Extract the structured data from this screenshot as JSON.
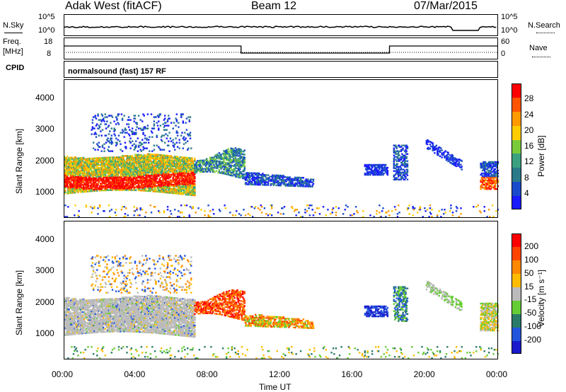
{
  "header": {
    "station": "Adak West (fitACF)",
    "beam": "Beam 12",
    "date": "07/Mar/2015"
  },
  "top_panels": {
    "nsky_label": "N.Sky",
    "nsearch_label": "N.Search",
    "nsky_ticks": [
      "10^5",
      "10^0"
    ],
    "nsearch_ticks": [
      "10^5",
      "10^0"
    ],
    "freq_label_1": "Freq.",
    "freq_label_2": "[MHz]",
    "freq_ticks": [
      "18",
      "8"
    ],
    "nave_label": "Nave",
    "nave_ticks": [
      "60",
      "0"
    ],
    "cpid_label": "CPID",
    "cpid_text": "normalsound (fast) 157 RF"
  },
  "chart_data": [
    {
      "type": "heatmap",
      "name": "power",
      "ylabel": "Slant Range [km]",
      "xlabel": "",
      "yticks": [
        "1000",
        "2000",
        "3000",
        "4000"
      ],
      "ylim": [
        200,
        4600
      ],
      "xlim": [
        0,
        24
      ],
      "colorbar": {
        "label": "Power [dB]",
        "ticks": [
          "4",
          "8",
          "12",
          "16",
          "20",
          "24",
          "28"
        ],
        "colors": [
          "#1a1aff",
          "#1a4acc",
          "#2a7a8a",
          "#3aa080",
          "#7acb3a",
          "#ffcc00",
          "#ff9900",
          "#ff5500",
          "#ff0000"
        ]
      }
    },
    {
      "type": "heatmap",
      "name": "velocity",
      "ylabel": "Slant Range [km]",
      "xlabel": "Time UT",
      "xticks": [
        "00:00",
        "04:00",
        "08:00",
        "12:00",
        "16:00",
        "20:00",
        "00:00"
      ],
      "yticks": [
        "1000",
        "2000",
        "3000",
        "4000"
      ],
      "ylim": [
        200,
        4600
      ],
      "xlim": [
        0,
        24
      ],
      "colorbar": {
        "label": "Velocity [m s⁻¹]",
        "ticks": [
          "200",
          "100",
          "50",
          "15",
          "-15",
          "-50",
          "-100",
          "-200"
        ],
        "colors": [
          "#1a1acc",
          "#2255dd",
          "#2a7a6a",
          "#66cc33",
          "#bbbbbb",
          "#ffbb00",
          "#ff8800",
          "#ff4400",
          "#ff0000"
        ]
      }
    }
  ]
}
